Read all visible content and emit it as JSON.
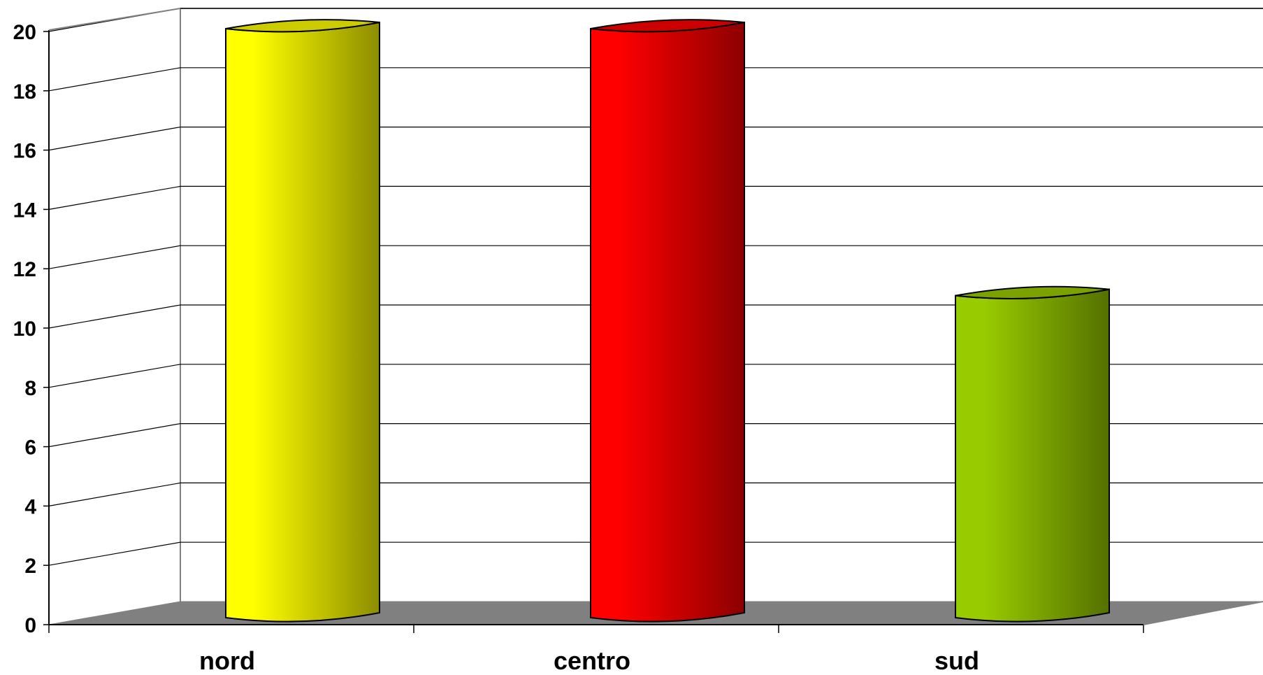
{
  "chart_data": {
    "type": "bar",
    "title": "",
    "xlabel": "",
    "ylabel": "",
    "categories": [
      "nord",
      "centro",
      "sud"
    ],
    "values": [
      20,
      20,
      11
    ],
    "bar_colors": [
      "#ffff00",
      "#ff0000",
      "#99cc00"
    ],
    "ylim": [
      0,
      20
    ],
    "y_ticks": [
      "0",
      "2",
      "4",
      "6",
      "8",
      "10",
      "12",
      "14",
      "16",
      "18",
      "20"
    ],
    "grid": true,
    "style": "3d-cylinder",
    "legend": "none"
  }
}
